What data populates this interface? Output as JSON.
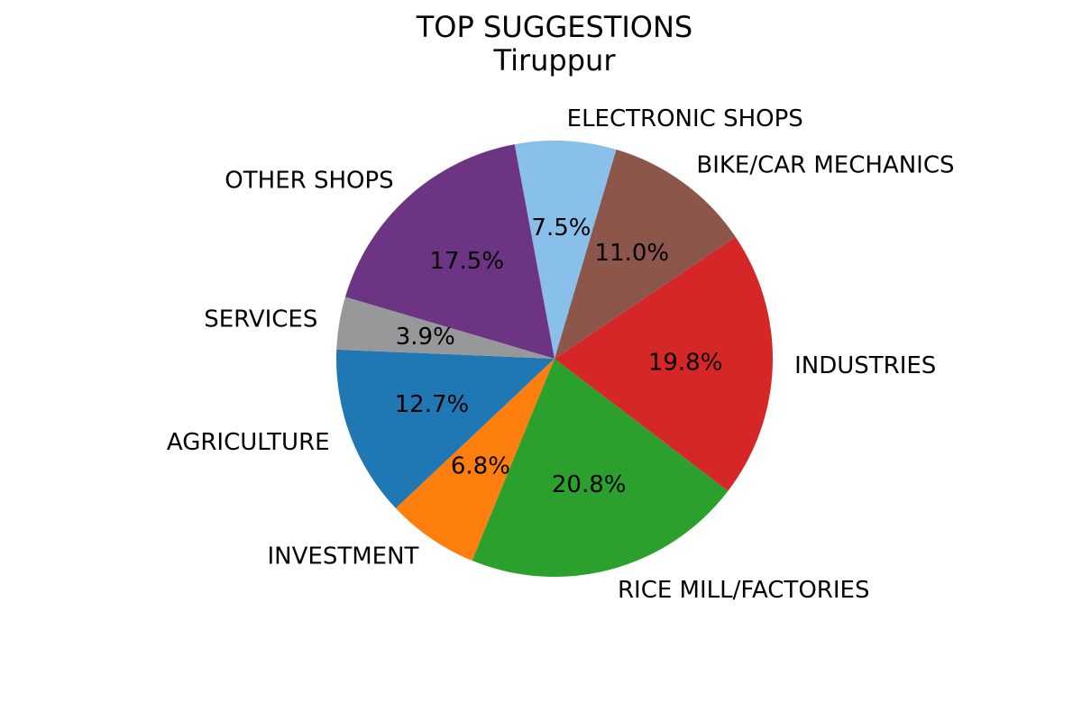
{
  "chart_data": {
    "type": "pie",
    "title": "TOP SUGGESTIONS",
    "subtitle": "Tiruppur",
    "start_angle_deg": 177.6,
    "direction": "counterclockwise",
    "slices": [
      {
        "label": "AGRICULTURE",
        "value": 12.7,
        "pct_label": "12.7%",
        "color": "#1f77b4"
      },
      {
        "label": "INVESTMENT",
        "value": 6.8,
        "pct_label": "6.8%",
        "color": "#ff7f0e"
      },
      {
        "label": "RICE MILL/FACTORIES",
        "value": 20.8,
        "pct_label": "20.8%",
        "color": "#2ca02c"
      },
      {
        "label": "INDUSTRIES",
        "value": 19.8,
        "pct_label": "19.8%",
        "color": "#d62728"
      },
      {
        "label": "BIKE/CAR MECHANICS",
        "value": 11.0,
        "pct_label": "11.0%",
        "color": "#8c564b"
      },
      {
        "label": "ELECTRONIC SHOPS",
        "value": 7.5,
        "pct_label": "7.5%",
        "color": "#88c0ea"
      },
      {
        "label": "OTHER SHOPS",
        "value": 17.5,
        "pct_label": "17.5%",
        "color": "#6c3483"
      },
      {
        "label": "SERVICES",
        "value": 3.9,
        "pct_label": "3.9%",
        "color": "#969899"
      }
    ]
  }
}
